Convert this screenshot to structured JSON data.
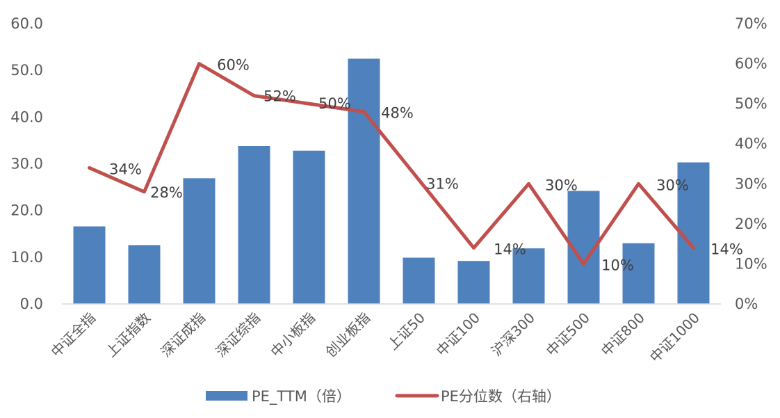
{
  "chart_data": {
    "type": "bar",
    "categories": [
      "中证全指",
      "上证指数",
      "深证成指",
      "深证综指",
      "中小板指",
      "创业板指",
      "上证50",
      "中证100",
      "沪深300",
      "中证500",
      "中证800",
      "中证1000"
    ],
    "series": [
      {
        "name": "PE_TTM（倍）",
        "type": "bar",
        "axis": "left",
        "color": "#4f81bd",
        "values": [
          16.6,
          12.6,
          26.9,
          33.8,
          32.8,
          52.5,
          9.9,
          9.2,
          11.9,
          24.2,
          13.0,
          30.3
        ]
      },
      {
        "name": "PE分位数（右轴）",
        "type": "line",
        "axis": "right",
        "color": "#c0504d",
        "values": [
          34,
          28,
          60,
          52,
          50,
          48,
          31,
          14,
          30,
          10,
          30,
          14
        ],
        "labels": [
          "34%",
          "28%",
          "60%",
          "52%",
          "50%",
          "48%",
          "31%",
          "14%",
          "30%",
          "10%",
          "30%",
          "14%"
        ]
      }
    ],
    "y_left": {
      "min": 0,
      "max": 60,
      "ticks": [
        "0.0",
        "10.0",
        "20.0",
        "30.0",
        "40.0",
        "50.0",
        "60.0"
      ]
    },
    "y_right": {
      "min": 0,
      "max": 70,
      "ticks": [
        "0%",
        "10%",
        "20%",
        "30%",
        "40%",
        "50%",
        "60%",
        "70%"
      ]
    },
    "grid": false,
    "legend_position": "bottom"
  }
}
